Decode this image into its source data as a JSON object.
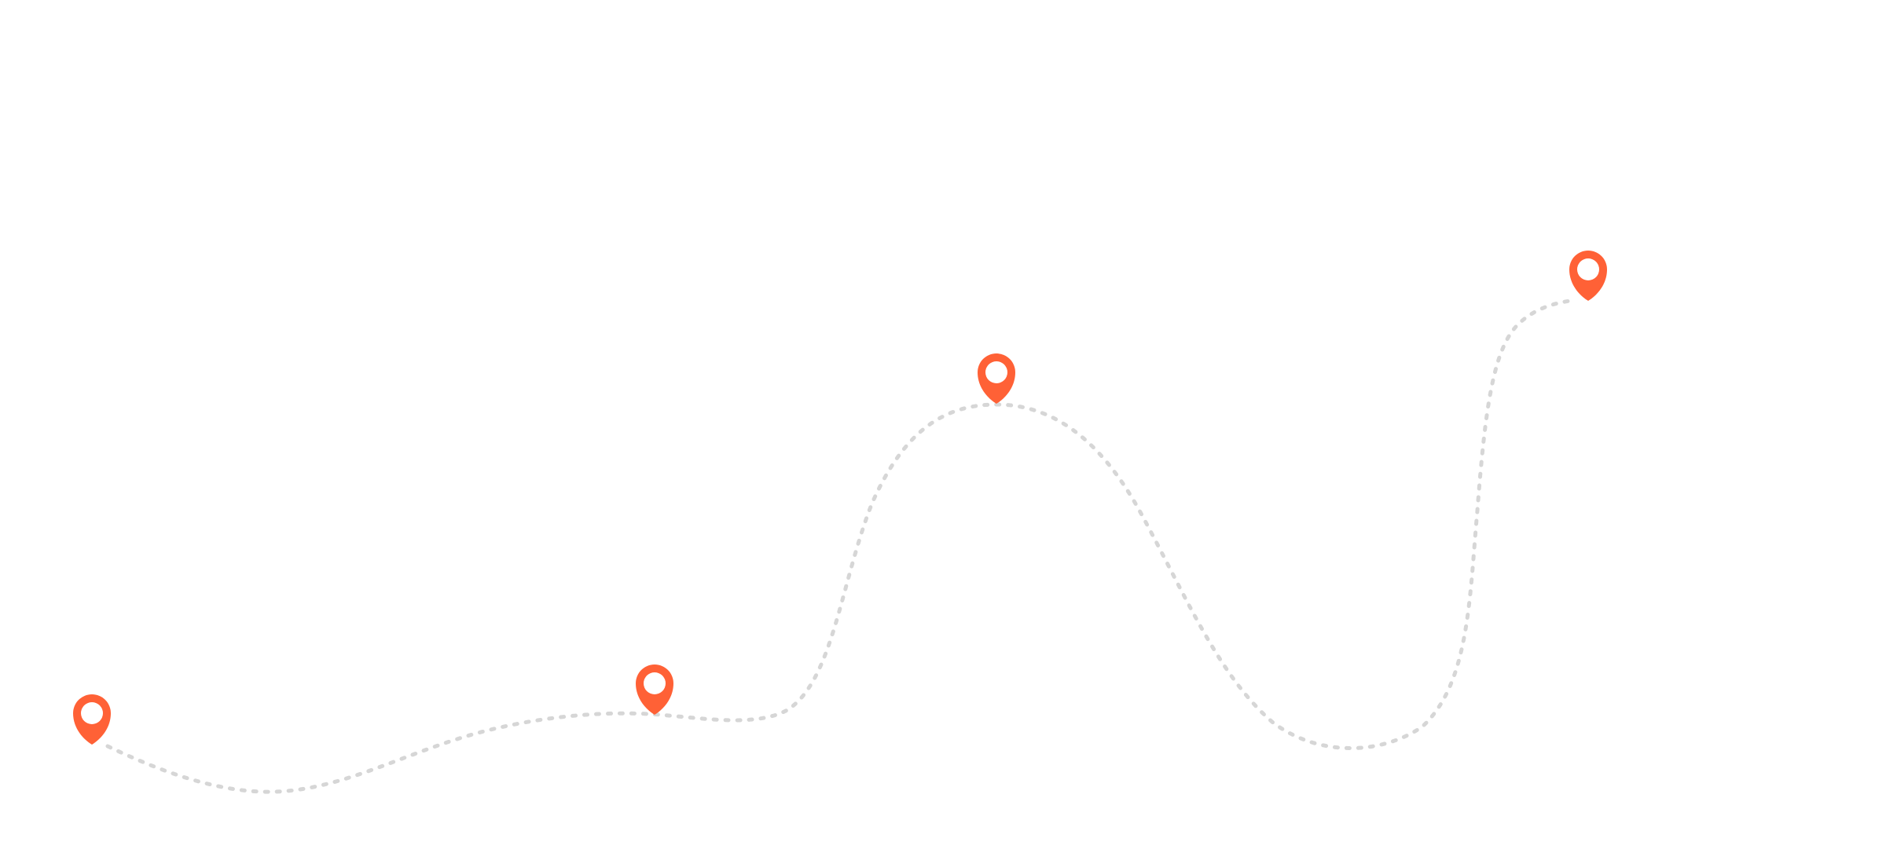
{
  "colors": {
    "pin": "#ff6136",
    "pin_inner": "#ffffff",
    "route": "#d6d6d6",
    "background": "#ffffff"
  },
  "route": {
    "style": "dotted",
    "icon": "map-pin-icon",
    "stops": 4
  }
}
